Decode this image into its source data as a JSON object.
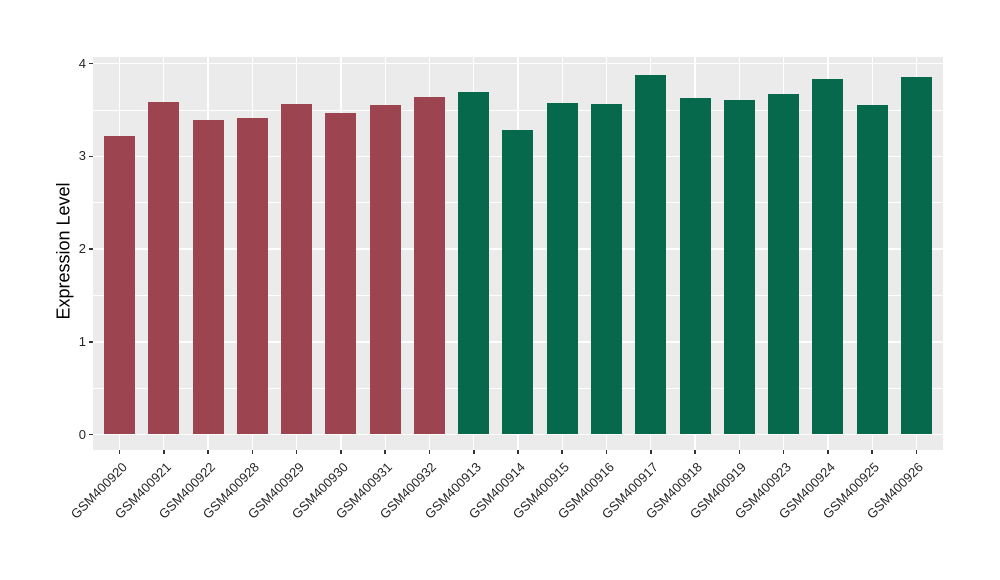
{
  "chart_data": {
    "type": "bar",
    "title": "",
    "xlabel": "",
    "ylabel": "Expression Level",
    "ylim": [
      0,
      4
    ],
    "yticks": [
      0,
      1,
      2,
      3,
      4
    ],
    "grid": "white major+minor horizontal lines and white vertical lines at bar centers on gray panel",
    "legend": "none",
    "categories": [
      "GSM400920",
      "GSM400921",
      "GSM400922",
      "GSM400928",
      "GSM400929",
      "GSM400930",
      "GSM400931",
      "GSM400932",
      "GSM400913",
      "GSM400914",
      "GSM400915",
      "GSM400916",
      "GSM400917",
      "GSM400918",
      "GSM400919",
      "GSM400923",
      "GSM400924",
      "GSM400925",
      "GSM400926"
    ],
    "values": [
      3.22,
      3.59,
      3.39,
      3.41,
      3.56,
      3.47,
      3.55,
      3.64,
      3.7,
      3.29,
      3.58,
      3.57,
      3.88,
      3.63,
      3.61,
      3.67,
      3.84,
      3.55,
      3.86
    ],
    "bar_colors": [
      "#9C4450",
      "#9C4450",
      "#9C4450",
      "#9C4450",
      "#9C4450",
      "#9C4450",
      "#9C4450",
      "#9C4450",
      "#06694B",
      "#06694B",
      "#06694B",
      "#06694B",
      "#06694B",
      "#06694B",
      "#06694B",
      "#06694B",
      "#06694B",
      "#06694B",
      "#06694B"
    ],
    "series": [
      {
        "name": "group-red",
        "color": "#9C4450",
        "categories": [
          "GSM400920",
          "GSM400921",
          "GSM400922",
          "GSM400928",
          "GSM400929",
          "GSM400930",
          "GSM400931",
          "GSM400932"
        ],
        "values": [
          3.22,
          3.59,
          3.39,
          3.41,
          3.56,
          3.47,
          3.55,
          3.64
        ]
      },
      {
        "name": "group-green",
        "color": "#06694B",
        "categories": [
          "GSM400913",
          "GSM400914",
          "GSM400915",
          "GSM400916",
          "GSM400917",
          "GSM400918",
          "GSM400919",
          "GSM400923",
          "GSM400924",
          "GSM400925",
          "GSM400926"
        ],
        "values": [
          3.7,
          3.29,
          3.58,
          3.57,
          3.88,
          3.63,
          3.61,
          3.67,
          3.84,
          3.55,
          3.86
        ]
      }
    ]
  },
  "colors": {
    "page_background": "#FFFFFF",
    "panel_background": "#EBEBEB",
    "grid_line": "#FFFFFF",
    "axis_text": "#262626",
    "axis_title": "#000000",
    "tick_mark": "#333333",
    "bar_red": "#9C4450",
    "bar_green": "#06694B"
  }
}
